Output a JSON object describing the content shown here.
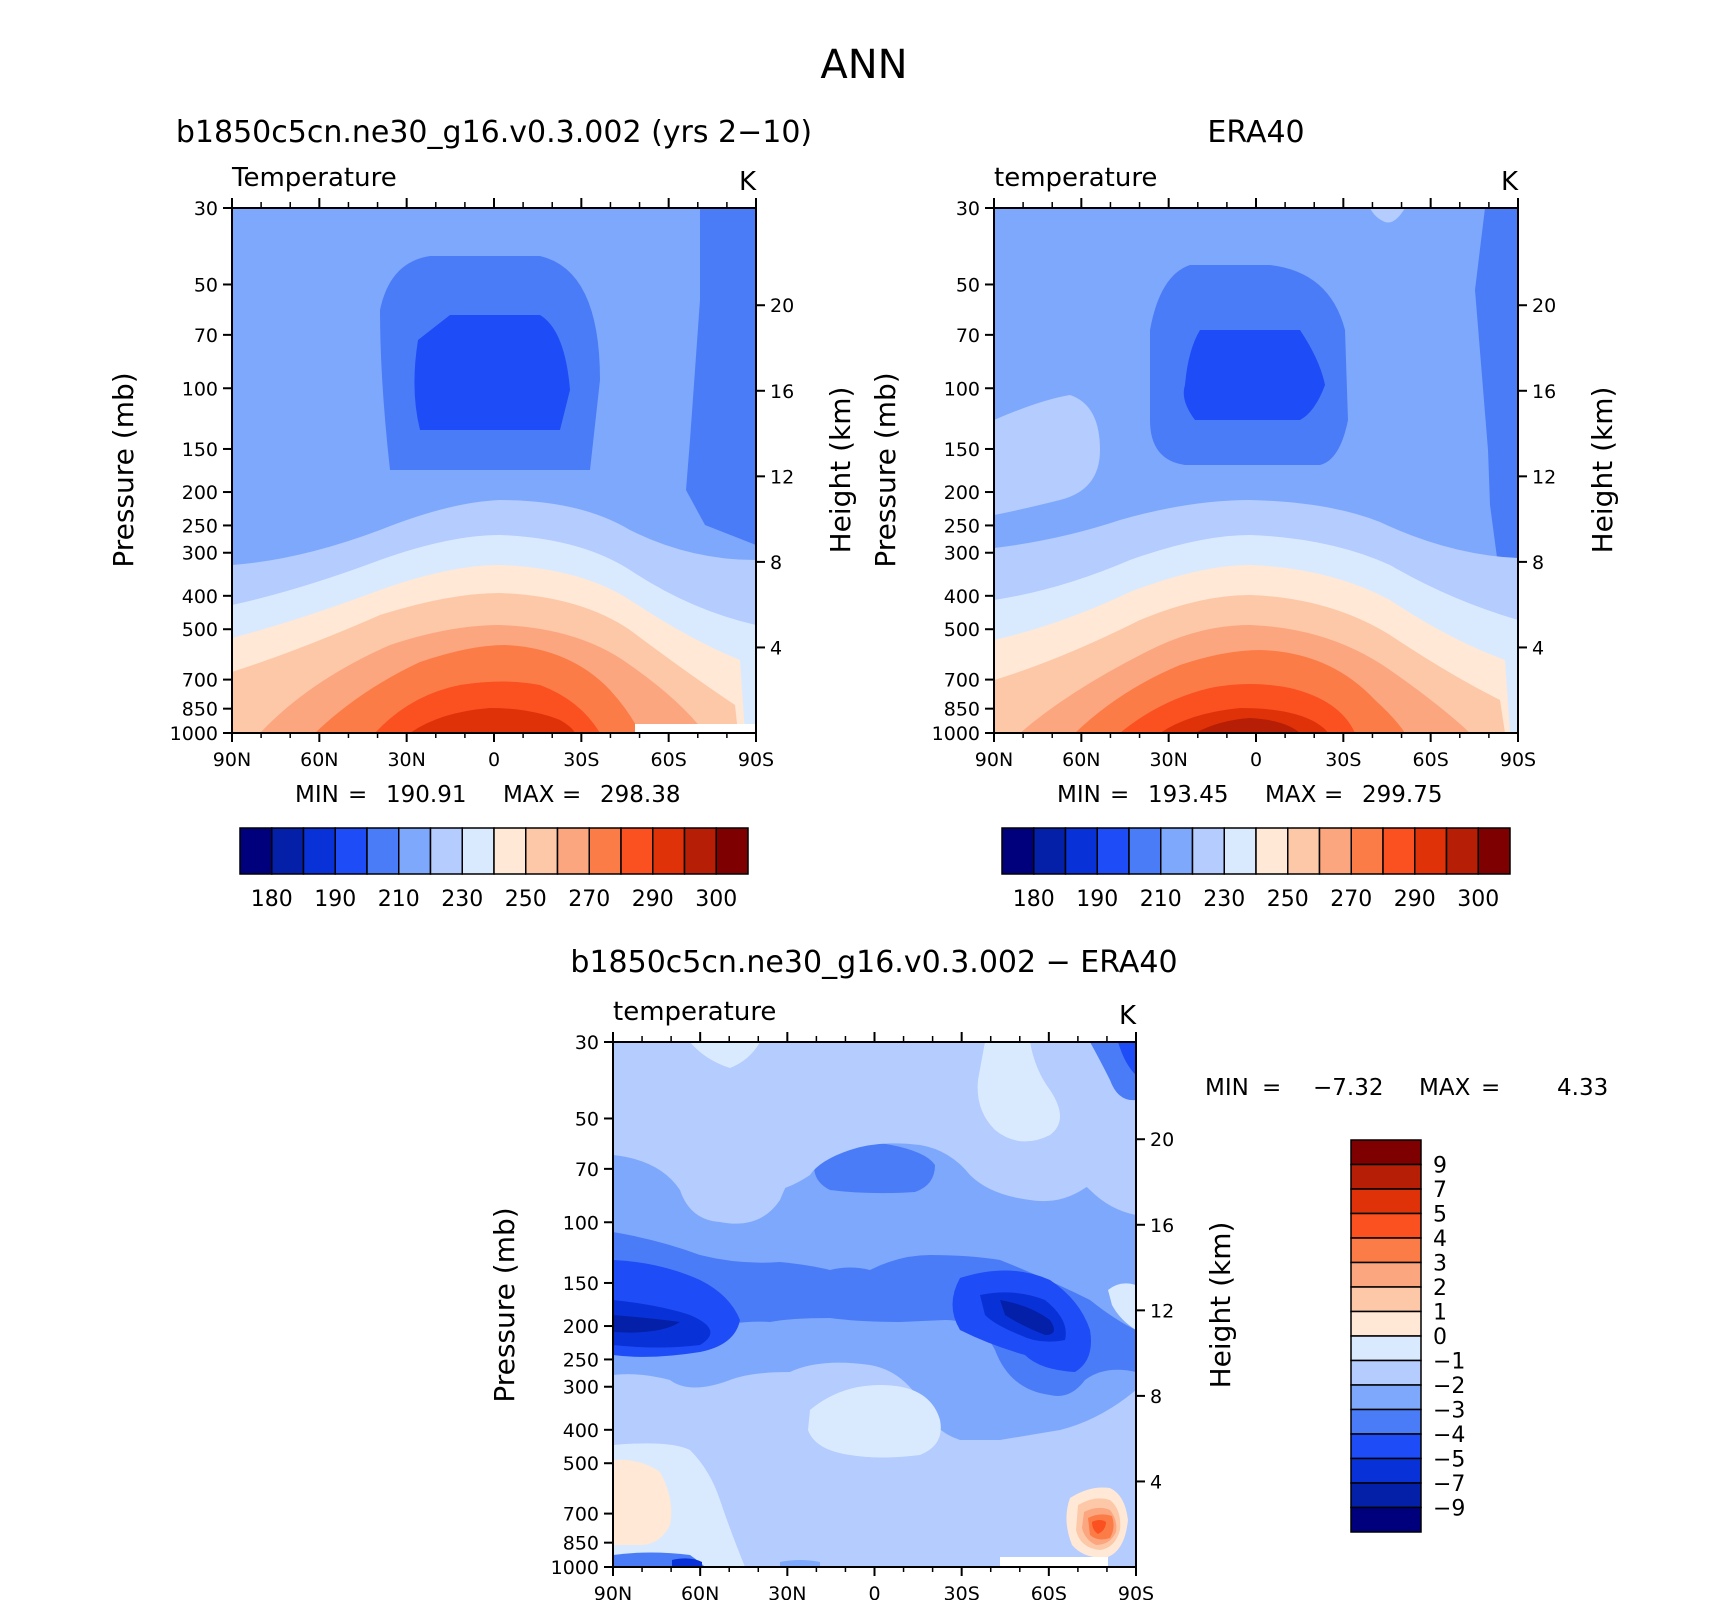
{
  "figure_title": "ANN",
  "chart_data": [
    {
      "type": "heatmap",
      "title": "b1850c5cn.ne30_g16.v0.3.002 (yrs 2−10)",
      "left_string": "Temperature",
      "right_string": "K",
      "xlabel": "",
      "ylabel": "Pressure (mb)",
      "ylabel_right": "Height (km)",
      "x_ticks": [
        "90N",
        "60N",
        "30N",
        "0",
        "30S",
        "60S",
        "90S"
      ],
      "y_ticks": [
        "30",
        "50",
        "70",
        "100",
        "150",
        "200",
        "250",
        "300",
        "400",
        "500",
        "700",
        "850",
        "1000"
      ],
      "y_ticks_right": [
        "4",
        "8",
        "12",
        "16",
        "20"
      ],
      "ylim": [
        1000,
        30
      ],
      "xlim": [
        90,
        -90
      ],
      "y_scale": "log",
      "min": "190.91",
      "max": "298.38",
      "contour_levels": [
        "180",
        "190",
        "210",
        "230",
        "250",
        "270",
        "290",
        "300"
      ],
      "colorbar_orientation": "horizontal"
    },
    {
      "type": "heatmap",
      "title": "ERA40",
      "left_string": "temperature",
      "right_string": "K",
      "xlabel": "",
      "ylabel": "Pressure (mb)",
      "ylabel_right": "Height (km)",
      "x_ticks": [
        "90N",
        "60N",
        "30N",
        "0",
        "30S",
        "60S",
        "90S"
      ],
      "y_ticks": [
        "30",
        "50",
        "70",
        "100",
        "150",
        "200",
        "250",
        "300",
        "400",
        "500",
        "700",
        "850",
        "1000"
      ],
      "y_ticks_right": [
        "4",
        "8",
        "12",
        "16",
        "20"
      ],
      "ylim": [
        1000,
        30
      ],
      "xlim": [
        90,
        -90
      ],
      "y_scale": "log",
      "min": "193.45",
      "max": "299.75",
      "contour_levels": [
        "180",
        "190",
        "210",
        "230",
        "250",
        "270",
        "290",
        "300"
      ],
      "colorbar_orientation": "horizontal"
    },
    {
      "type": "heatmap",
      "title": "b1850c5cn.ne30_g16.v0.3.002 − ERA40",
      "left_string": "temperature",
      "right_string": "K",
      "xlabel": "",
      "ylabel": "Pressure (mb)",
      "ylabel_right": "Height (km)",
      "x_ticks": [
        "90N",
        "60N",
        "30N",
        "0",
        "30S",
        "60S",
        "90S"
      ],
      "y_ticks": [
        "30",
        "50",
        "70",
        "100",
        "150",
        "200",
        "250",
        "300",
        "400",
        "500",
        "700",
        "850",
        "1000"
      ],
      "y_ticks_right": [
        "4",
        "8",
        "12",
        "16",
        "20"
      ],
      "ylim": [
        1000,
        30
      ],
      "xlim": [
        90,
        -90
      ],
      "y_scale": "log",
      "min": "−7.32",
      "max": "4.33",
      "contour_levels": [
        "9",
        "7",
        "5",
        "4",
        "3",
        "2",
        "1",
        "0",
        "−1",
        "−2",
        "−3",
        "−4",
        "−5",
        "−7",
        "−9"
      ],
      "colorbar_orientation": "vertical"
    }
  ],
  "colors": {
    "abs_palette": [
      "#00007d",
      "#0420a8",
      "#0832d8",
      "#1e4cf6",
      "#4a7cf8",
      "#7ea8fc",
      "#b4ccfe",
      "#daeafe",
      "#ffe8d6",
      "#fdc8a8",
      "#fca680",
      "#fc7c48",
      "#fb5020",
      "#e03208",
      "#b61e06",
      "#7e0000"
    ],
    "diff_palette": [
      "#7e0000",
      "#b61e06",
      "#e03208",
      "#fb5020",
      "#fc7c48",
      "#fca680",
      "#fdc8a8",
      "#ffe8d6",
      "#daeafe",
      "#b4ccfe",
      "#7ea8fc",
      "#4a7cf8",
      "#1e4cf6",
      "#0832d8",
      "#0420a8",
      "#00007d"
    ]
  },
  "labels": {
    "min": "MIN",
    "max": "MAX",
    "eq": "="
  }
}
